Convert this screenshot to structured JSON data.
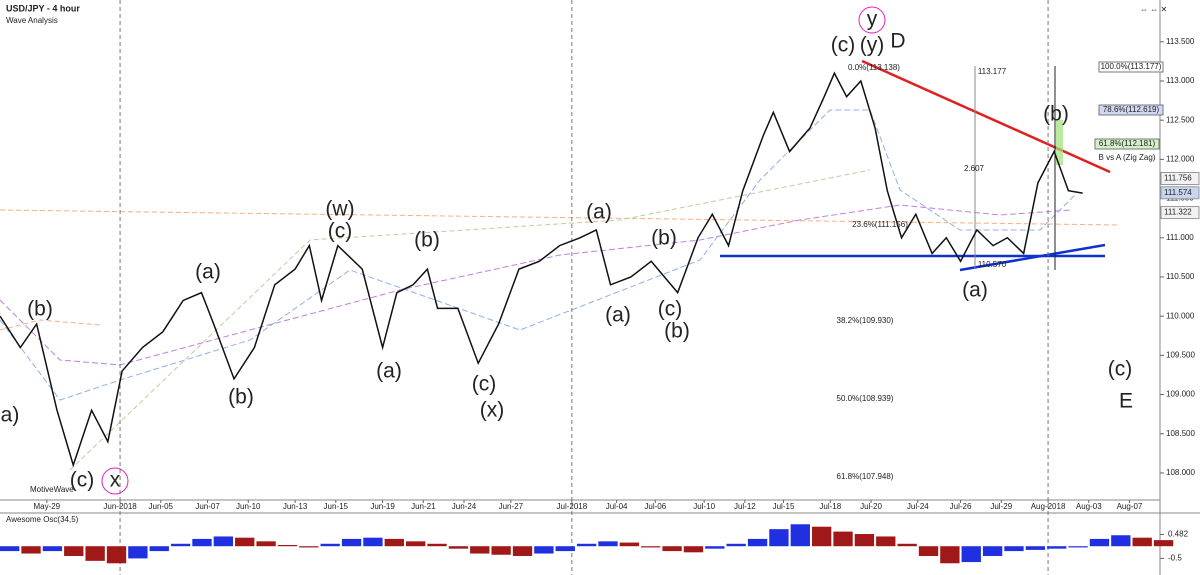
{
  "chart_data": {
    "type": "line",
    "title": "USD/JPY - 4 hour",
    "subtitle": "Wave Analysis",
    "brand": "MotiveWave",
    "xlim": [
      0,
      57
    ],
    "ylim": [
      107.655,
      114.033
    ],
    "xticks": [
      {
        "value": 2.3,
        "label": "May-29"
      },
      {
        "value": 5.9,
        "label": "Jun-2018"
      },
      {
        "value": 7.9,
        "label": "Jun-05"
      },
      {
        "value": 10.2,
        "label": "Jun-07"
      },
      {
        "value": 12.2,
        "label": "Jun-10"
      },
      {
        "value": 14.5,
        "label": "Jun-13"
      },
      {
        "value": 16.5,
        "label": "Jun-15"
      },
      {
        "value": 18.8,
        "label": "Jun-19"
      },
      {
        "value": 20.8,
        "label": "Jun-21"
      },
      {
        "value": 22.8,
        "label": "Jun-24"
      },
      {
        "value": 25.1,
        "label": "Jun-27"
      },
      {
        "value": 28.1,
        "label": "Jul-2018"
      },
      {
        "value": 30.3,
        "label": "Jul-04"
      },
      {
        "value": 32.2,
        "label": "Jul-06"
      },
      {
        "value": 34.6,
        "label": "Jul-10"
      },
      {
        "value": 36.6,
        "label": "Jul-12"
      },
      {
        "value": 38.5,
        "label": "Jul-15"
      },
      {
        "value": 40.8,
        "label": "Jul-18"
      },
      {
        "value": 42.8,
        "label": "Jul-20"
      },
      {
        "value": 45.1,
        "label": "Jul-24"
      },
      {
        "value": 47.2,
        "label": "Jul-26"
      },
      {
        "value": 49.2,
        "label": "Jul-29"
      },
      {
        "value": 51.5,
        "label": "Aug-2018"
      },
      {
        "value": 53.5,
        "label": "Aug-03"
      },
      {
        "value": 55.5,
        "label": "Aug-07"
      }
    ],
    "yticks": [
      {
        "value": 108,
        "label": "108.000"
      },
      {
        "value": 108.5,
        "label": "108.500"
      },
      {
        "value": 109,
        "label": "109.000"
      },
      {
        "value": 109.5,
        "label": "109.500"
      },
      {
        "value": 110,
        "label": "110.000"
      },
      {
        "value": 110.5,
        "label": "110.500"
      },
      {
        "value": 111,
        "label": "111.000"
      },
      {
        "value": 111.5,
        "label": "111.500"
      },
      {
        "value": 112,
        "label": "112.000"
      },
      {
        "value": 112.5,
        "label": "112.500"
      },
      {
        "value": 113,
        "label": "113.000"
      },
      {
        "value": 113.5,
        "label": "113.500"
      }
    ],
    "series": [
      {
        "name": "Close",
        "color": "#111111",
        "x": [
          0,
          1,
          1.8,
          2.8,
          3.6,
          4.5,
          5.3,
          6,
          7,
          8,
          9,
          9.9,
          10.5,
          11.5,
          12.5,
          13.5,
          14.5,
          15.2,
          15.8,
          16.6,
          17.8,
          18.8,
          19.5,
          20.3,
          21,
          21.5,
          22.5,
          23.5,
          24.5,
          25.5,
          26.5,
          27.5,
          28.5,
          29.3,
          30,
          31,
          32,
          33.3,
          34.3,
          35,
          35.8,
          36.5,
          37.5,
          38,
          38.8,
          39.8,
          40.5,
          41,
          41.6,
          42.3,
          43,
          43.6,
          44.3,
          45,
          45.8,
          46.5,
          47.2,
          48,
          48.8,
          49.5,
          50.3,
          51,
          51.8,
          52.5,
          53.2
        ],
        "values": [
          110,
          109.6,
          109.9,
          108.8,
          108.1,
          108.8,
          108.4,
          109.3,
          109.6,
          109.8,
          110.2,
          110.3,
          109.9,
          109.2,
          109.6,
          110.4,
          110.6,
          110.9,
          110.2,
          110.9,
          110.6,
          109.6,
          110.3,
          110.4,
          110.6,
          110.1,
          110.1,
          109.4,
          109.9,
          110.6,
          110.7,
          110.9,
          111,
          111.1,
          110.4,
          110.5,
          110.7,
          110.3,
          111,
          111.3,
          110.9,
          111.6,
          112.3,
          112.6,
          112.1,
          112.4,
          112.8,
          113.1,
          112.8,
          113,
          112.4,
          111.6,
          111,
          111.3,
          110.8,
          111,
          110.7,
          111.1,
          110.9,
          111,
          110.8,
          111.7,
          112.1,
          111.6,
          111.57
        ]
      }
    ],
    "price_markers": [
      111.756,
      111.574,
      111.322
    ],
    "annotations": [
      {
        "text": "(b)",
        "color": "#1a1acc"
      },
      {
        "text": "a)",
        "color": "#1a1acc"
      },
      {
        "text": "(c)",
        "color": "#1a1acc"
      },
      {
        "text": "x",
        "color": "#e020c0"
      },
      {
        "text": "(a)",
        "color": "#1a8a1a"
      },
      {
        "text": "(b)",
        "color": "#1a8a1a"
      },
      {
        "text": "(w)",
        "color": "#1a1acc"
      },
      {
        "text": "(c)",
        "color": "#1a8a1a"
      },
      {
        "text": "(b)",
        "color": "#1a8a1a"
      },
      {
        "text": "(a)",
        "color": "#1a8a1a"
      },
      {
        "text": "(c)",
        "color": "#1a8a1a"
      },
      {
        "text": "(x)",
        "color": "#1a1acc"
      },
      {
        "text": "(a)",
        "color": "#1a8a1a"
      },
      {
        "text": "(b)",
        "color": "#f0900a"
      },
      {
        "text": "(a)",
        "color": "#f0900a"
      },
      {
        "text": "(c)",
        "color": "#f0900a"
      },
      {
        "text": "(b)",
        "color": "#1a8a1a"
      },
      {
        "text": "(c)",
        "color": "#1a8a1a"
      },
      {
        "text": "(y)",
        "color": "#1a1acc"
      },
      {
        "text": "y",
        "color": "#e020c0"
      },
      {
        "text": "D",
        "color": "#b090e0"
      },
      {
        "text": "(a)",
        "color": "#e01010"
      },
      {
        "text": "(b)",
        "color": "#e01010"
      },
      {
        "text": "(c)",
        "color": "#e01010"
      },
      {
        "text": "E",
        "color": "#b090e0"
      }
    ],
    "fib_labels": [
      "0.0%(113.138)",
      "23.6%(111.156)",
      "38.2%(109.930)",
      "50.0%(108.939)",
      "61.8%(107.948)",
      "100.0%(113.177)",
      "78.6%(112.619)",
      "61.8%(112.181)",
      "B vs A (Zig Zag)",
      "113.177",
      "2.607",
      "110.570"
    ],
    "oscillator": {
      "title": "Awesome Osc(34,5)",
      "ylim": [
        -1.18,
        1.28
      ],
      "yticks": [
        0.482,
        -0.5
      ],
      "up_color": "#2030e0",
      "down_color": "#a01818",
      "values": [
        -0.2,
        -0.3,
        -0.2,
        -0.4,
        -0.6,
        -0.7,
        -0.5,
        -0.2,
        0.1,
        0.3,
        0.4,
        0.35,
        0.2,
        0.05,
        -0.05,
        0.1,
        0.3,
        0.35,
        0.3,
        0.2,
        0.1,
        -0.1,
        -0.3,
        -0.35,
        -0.4,
        -0.3,
        -0.2,
        0.1,
        0.2,
        0.15,
        -0.05,
        -0.2,
        -0.25,
        -0.1,
        0.1,
        0.3,
        0.7,
        0.9,
        0.8,
        0.6,
        0.5,
        0.4,
        0.1,
        -0.4,
        -0.7,
        -0.65,
        -0.4,
        -0.2,
        -0.15,
        -0.1,
        -0.05,
        0.3,
        0.45,
        0.35,
        0.25
      ]
    }
  }
}
